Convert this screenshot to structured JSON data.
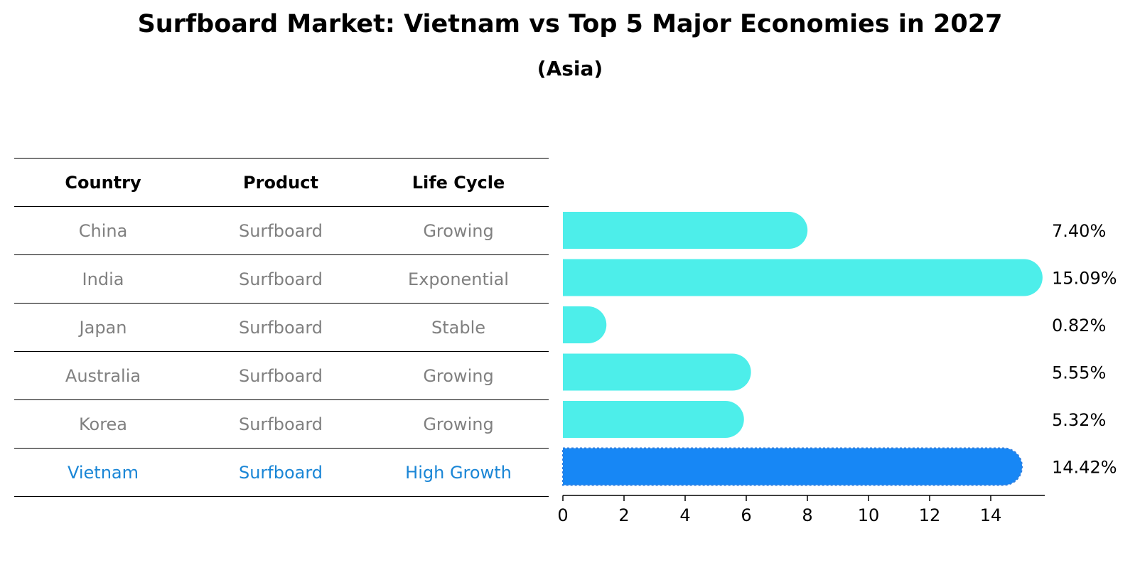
{
  "chart_data": {
    "type": "bar",
    "orientation": "horizontal",
    "title": "Surfboard Market: Vietnam vs Top 5 Major Economies in 2027",
    "subtitle": "(Asia)",
    "table_headers": [
      "Country",
      "Product",
      "Life Cycle"
    ],
    "rows": [
      {
        "country": "China",
        "product": "Surfboard",
        "life_cycle": "Growing",
        "value": 7.4,
        "label": "7.40%"
      },
      {
        "country": "India",
        "product": "Surfboard",
        "life_cycle": "Exponential",
        "value": 15.09,
        "label": "15.09%"
      },
      {
        "country": "Japan",
        "product": "Surfboard",
        "life_cycle": "Stable",
        "value": 0.82,
        "label": "0.82%"
      },
      {
        "country": "Australia",
        "product": "Surfboard",
        "life_cycle": "Growing",
        "value": 5.55,
        "label": "5.55%"
      },
      {
        "country": "Korea",
        "product": "Surfboard",
        "life_cycle": "Growing",
        "value": 5.32,
        "label": "5.32%"
      },
      {
        "country": "Vietnam",
        "product": "Surfboard",
        "life_cycle": "High Growth",
        "value": 14.42,
        "label": "14.42%"
      }
    ],
    "highlight": "Vietnam",
    "xticks": [
      "0",
      "2",
      "4",
      "6",
      "8",
      "10",
      "12",
      "14"
    ],
    "xlim": [
      0,
      15.8
    ],
    "colors": {
      "bar": "#4deeea",
      "highlight_bar": "#1787f5",
      "highlight_text": "#1a86d6",
      "muted_text": "#808080"
    }
  }
}
